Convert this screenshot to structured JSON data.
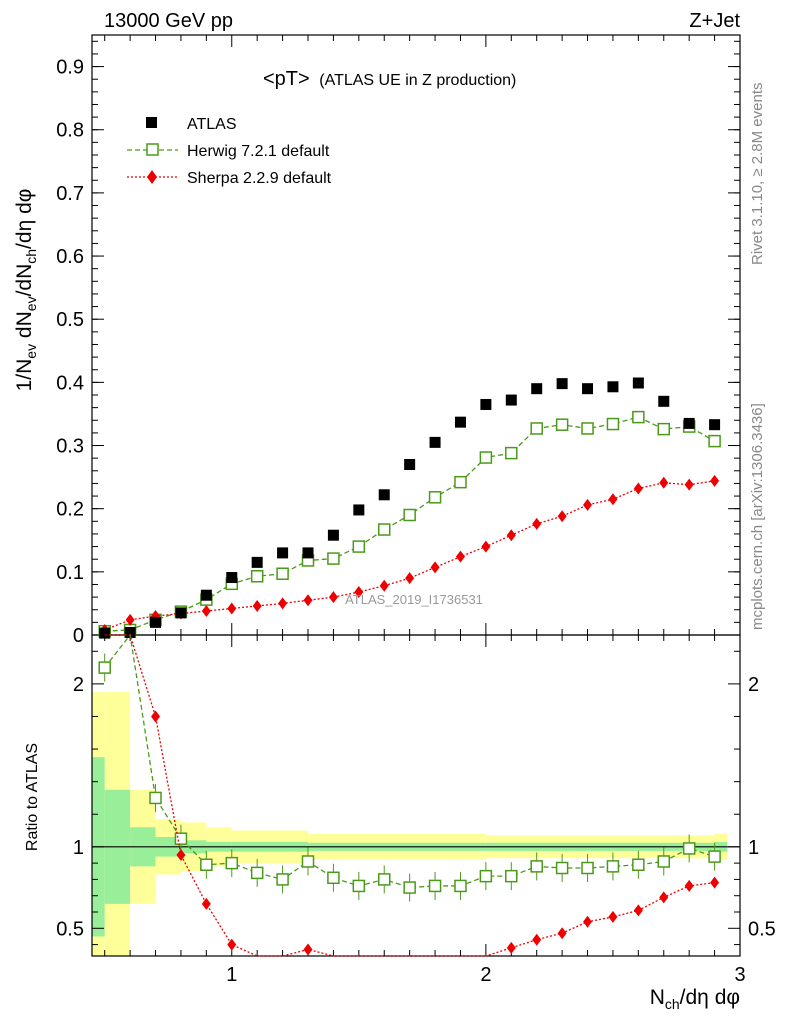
{
  "header": {
    "left": "13000 GeV pp",
    "right": "Z+Jet"
  },
  "side": {
    "rivet": "Rivet 3.1.10, ≥ 2.8M events",
    "mcplots": "mcplots.cern.ch [arXiv:1306.3436]"
  },
  "main_panel": {
    "title_main": "<pT>",
    "title_sub": "(ATLAS UE in Z production)",
    "watermark": "ATLAS_2019_I1736531",
    "ylabel": "1/N",
    "ylabel_sub1": "ev",
    "ylabel_mid": " dN",
    "ylabel_sub2": "ev",
    "ylabel_mid2": "/dN",
    "ylabel_sub3": "ch",
    "ylabel_end": "/dη dφ"
  },
  "ratio_panel": {
    "ylabel": "Ratio to ATLAS"
  },
  "xaxis": {
    "label_main": "N",
    "label_sub": "ch",
    "label_end": "/dη dφ"
  },
  "colors": {
    "atlas": "#000000",
    "herwig": "#4a9a1a",
    "sherpa": "#ee0000",
    "band_inner": "#99ee99",
    "band_outer": "#ffff99"
  },
  "chart_data": {
    "type": "scatter",
    "xlim": [
      0.45,
      3.0
    ],
    "main_ylim": [
      0,
      0.95
    ],
    "ratio_ylim": [
      0.33,
      2.3
    ],
    "x": [
      0.5,
      0.6,
      0.7,
      0.8,
      0.9,
      1.0,
      1.1,
      1.2,
      1.3,
      1.4,
      1.5,
      1.6,
      1.7,
      1.8,
      1.9,
      2.0,
      2.1,
      2.2,
      2.3,
      2.4,
      2.5,
      2.6,
      2.7,
      2.8,
      2.9
    ],
    "xticks": [
      {
        "value": 1,
        "label": "1"
      },
      {
        "value": 2,
        "label": "2"
      },
      {
        "value": 3,
        "label": "3"
      }
    ],
    "main_yticks": [
      {
        "value": 0,
        "label": "0"
      },
      {
        "value": 0.1,
        "label": "0.1"
      },
      {
        "value": 0.2,
        "label": "0.2"
      },
      {
        "value": 0.3,
        "label": "0.3"
      },
      {
        "value": 0.4,
        "label": "0.4"
      },
      {
        "value": 0.5,
        "label": "0.5"
      },
      {
        "value": 0.6,
        "label": "0.6"
      },
      {
        "value": 0.7,
        "label": "0.7"
      },
      {
        "value": 0.8,
        "label": "0.8"
      },
      {
        "value": 0.9,
        "label": "0.9"
      }
    ],
    "ratio_yticks": [
      {
        "value": 0.5,
        "label": "0.5"
      },
      {
        "value": 1,
        "label": "1"
      },
      {
        "value": 2,
        "label": "2"
      }
    ],
    "series": [
      {
        "name": "ATLAS",
        "values": [
          0.003,
          0.004,
          0.02,
          0.035,
          0.063,
          0.091,
          0.115,
          0.13,
          0.13,
          0.158,
          0.198,
          0.222,
          0.27,
          0.305,
          0.337,
          0.365,
          0.372,
          0.39,
          0.398,
          0.39,
          0.393,
          0.399,
          0.37,
          0.335,
          0.333
        ]
      },
      {
        "name": "Herwig 7.2.1 default",
        "values": [
          0.006,
          0.008,
          0.024,
          0.037,
          0.056,
          0.081,
          0.093,
          0.097,
          0.118,
          0.121,
          0.14,
          0.167,
          0.19,
          0.218,
          0.242,
          0.281,
          0.288,
          0.327,
          0.333,
          0.327,
          0.334,
          0.345,
          0.326,
          0.33,
          0.307
        ],
        "ratio": [
          2.1,
          3.0,
          1.3,
          1.05,
          0.89,
          0.9,
          0.84,
          0.8,
          0.91,
          0.81,
          0.76,
          0.8,
          0.75,
          0.76,
          0.76,
          0.82,
          0.82,
          0.88,
          0.87,
          0.87,
          0.88,
          0.89,
          0.91,
          0.99,
          0.94
        ]
      },
      {
        "name": "Sherpa 2.2.9 default",
        "values": [
          0.008,
          0.024,
          0.03,
          0.034,
          0.038,
          0.042,
          0.046,
          0.05,
          0.055,
          0.06,
          0.068,
          0.078,
          0.09,
          0.107,
          0.124,
          0.14,
          0.158,
          0.176,
          0.188,
          0.206,
          0.215,
          0.232,
          0.241,
          0.238,
          0.244
        ],
        "ratio": [
          3.0,
          3.0,
          1.8,
          0.95,
          0.65,
          0.4,
          0.28,
          0.27,
          0.37,
          0.2,
          0.2,
          0.22,
          0.25,
          0.27,
          0.29,
          0.31,
          0.38,
          0.43,
          0.47,
          0.54,
          0.57,
          0.61,
          0.69,
          0.76,
          0.78
        ]
      }
    ],
    "band_inner": [
      [
        0.45,
        0.5,
        1.55
      ],
      [
        0.5,
        0.6,
        1.35
      ],
      [
        0.6,
        0.7,
        1.12
      ],
      [
        0.7,
        0.8,
        1.06
      ],
      [
        0.8,
        0.9,
        1.04
      ],
      [
        0.9,
        1.0,
        1.03
      ],
      [
        1.0,
        1.3,
        1.03
      ],
      [
        1.3,
        2.0,
        1.025
      ],
      [
        2.0,
        2.9,
        1.025
      ],
      [
        2.9,
        2.95,
        1.03
      ]
    ],
    "band_outer": [
      [
        0.45,
        0.5,
        1.95
      ],
      [
        0.5,
        0.6,
        1.95
      ],
      [
        0.6,
        0.7,
        1.35
      ],
      [
        0.7,
        0.8,
        1.17
      ],
      [
        0.8,
        0.9,
        1.15
      ],
      [
        0.9,
        1.0,
        1.12
      ],
      [
        1.0,
        1.3,
        1.1
      ],
      [
        1.3,
        2.0,
        1.08
      ],
      [
        2.0,
        2.9,
        1.07
      ],
      [
        2.9,
        2.95,
        1.08
      ]
    ]
  }
}
